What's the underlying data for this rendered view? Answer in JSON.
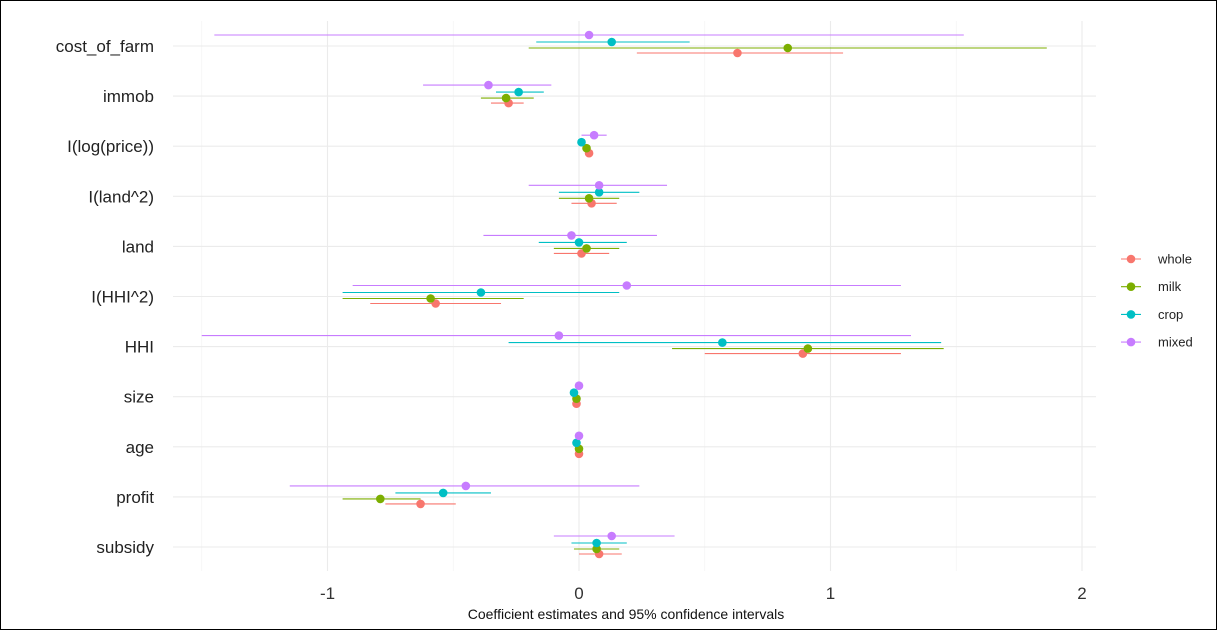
{
  "chart_data": {
    "type": "scatter",
    "subtype": "coefficient-plot",
    "xlabel": "Coefficient estimates and 95% confidence intervals",
    "xlim": [
      -1.5,
      2.0
    ],
    "xticks": [
      -1,
      0,
      1,
      2
    ],
    "tick_labels": [
      "-1",
      "0",
      "1",
      "2"
    ],
    "grid": true,
    "legend_position": "right",
    "categories": [
      "cost_of_farm",
      "immob",
      "I(log(price))",
      "I(land^2)",
      "land",
      "I(HHI^2)",
      "HHI",
      "size",
      "age",
      "profit",
      "subsidy"
    ],
    "series": [
      {
        "name": "whole",
        "color": "#F8766D",
        "estimates": [
          0.63,
          -0.28,
          0.04,
          0.05,
          0.01,
          -0.57,
          0.89,
          -0.01,
          0.0,
          -0.63,
          0.08
        ],
        "ci_low": [
          0.23,
          -0.35,
          0.03,
          -0.03,
          -0.1,
          -0.83,
          0.5,
          -0.02,
          -0.01,
          -0.77,
          0.0
        ],
        "ci_high": [
          1.05,
          -0.22,
          0.05,
          0.15,
          0.12,
          -0.31,
          1.28,
          0.0,
          0.01,
          -0.49,
          0.17
        ]
      },
      {
        "name": "milk",
        "color": "#7CAE00",
        "estimates": [
          0.83,
          -0.29,
          0.03,
          0.04,
          0.03,
          -0.59,
          0.91,
          -0.01,
          0.0,
          -0.79,
          0.07
        ],
        "ci_low": [
          -0.2,
          -0.39,
          0.02,
          -0.08,
          -0.1,
          -0.94,
          0.37,
          -0.02,
          -0.01,
          -0.94,
          -0.02
        ],
        "ci_high": [
          1.86,
          -0.18,
          0.04,
          0.16,
          0.16,
          -0.22,
          1.45,
          0.0,
          0.01,
          -0.63,
          0.16
        ]
      },
      {
        "name": "crop",
        "color": "#00BFC4",
        "estimates": [
          0.13,
          -0.24,
          0.01,
          0.08,
          0.0,
          -0.39,
          0.57,
          -0.02,
          -0.01,
          -0.54,
          0.07
        ],
        "ci_low": [
          -0.17,
          -0.33,
          0.0,
          -0.08,
          -0.16,
          -0.94,
          -0.28,
          -0.03,
          -0.02,
          -0.73,
          -0.03
        ],
        "ci_high": [
          0.44,
          -0.14,
          0.02,
          0.24,
          0.19,
          0.16,
          1.44,
          -0.01,
          0.0,
          -0.35,
          0.19
        ]
      },
      {
        "name": "mixed",
        "color": "#C77CFF",
        "estimates": [
          0.04,
          -0.36,
          0.06,
          0.08,
          -0.03,
          0.19,
          -0.08,
          0.0,
          0.0,
          -0.45,
          0.13
        ],
        "ci_low": [
          -1.45,
          -0.62,
          0.01,
          -0.2,
          -0.38,
          -0.9,
          -1.5,
          -0.01,
          -0.01,
          -1.15,
          -0.1
        ],
        "ci_high": [
          1.53,
          -0.11,
          0.11,
          0.35,
          0.31,
          1.28,
          1.32,
          0.01,
          0.01,
          0.24,
          0.38
        ]
      }
    ]
  }
}
